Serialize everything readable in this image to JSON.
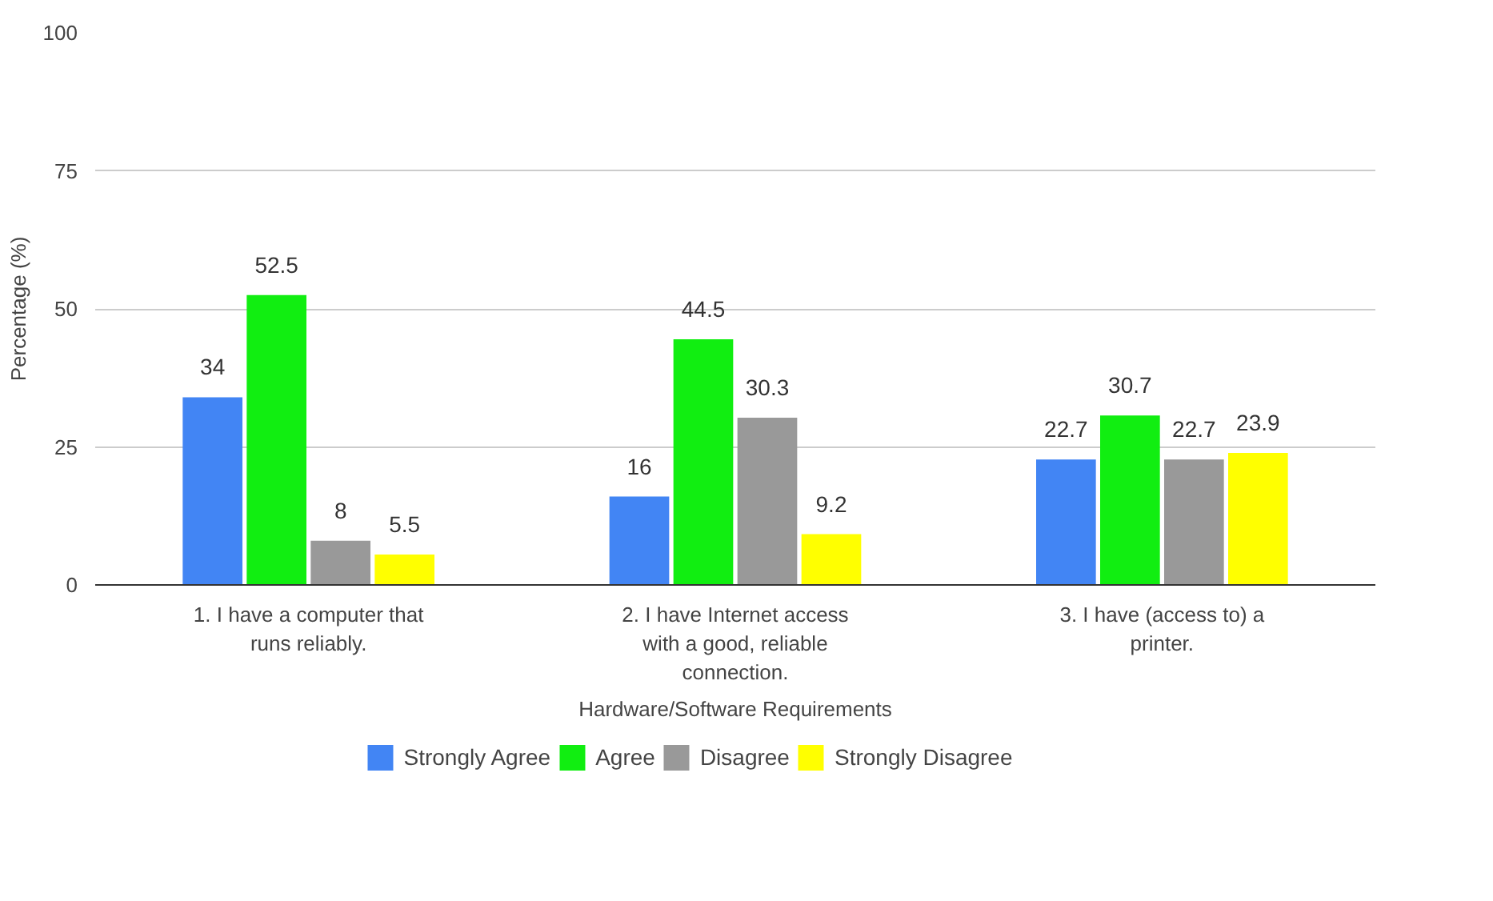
{
  "chart_data": {
    "type": "bar",
    "xlabel": "Hardware/Software Requirements",
    "ylabel": "Percentage (%)",
    "categories": [
      "1. I have a computer that runs reliably.",
      "2. I have Internet access with a good, reliable connection.",
      "3. I have (access to) a printer."
    ],
    "series": [
      {
        "name": "Strongly Agree",
        "color": "#4285f4",
        "values": [
          34,
          16,
          22.7
        ]
      },
      {
        "name": "Agree",
        "color": "#11ee11",
        "values": [
          52.5,
          44.5,
          30.7
        ]
      },
      {
        "name": "Disagree",
        "color": "#999999",
        "values": [
          8,
          30.3,
          22.7
        ]
      },
      {
        "name": "Strongly Disagree",
        "color": "#ffff00",
        "values": [
          5.5,
          9.2,
          23.9
        ]
      }
    ],
    "ylim": [
      0,
      100
    ],
    "yticks": [
      0,
      25,
      50,
      75,
      100
    ],
    "grid": "y",
    "legend": "bottom",
    "data_labels": true
  }
}
